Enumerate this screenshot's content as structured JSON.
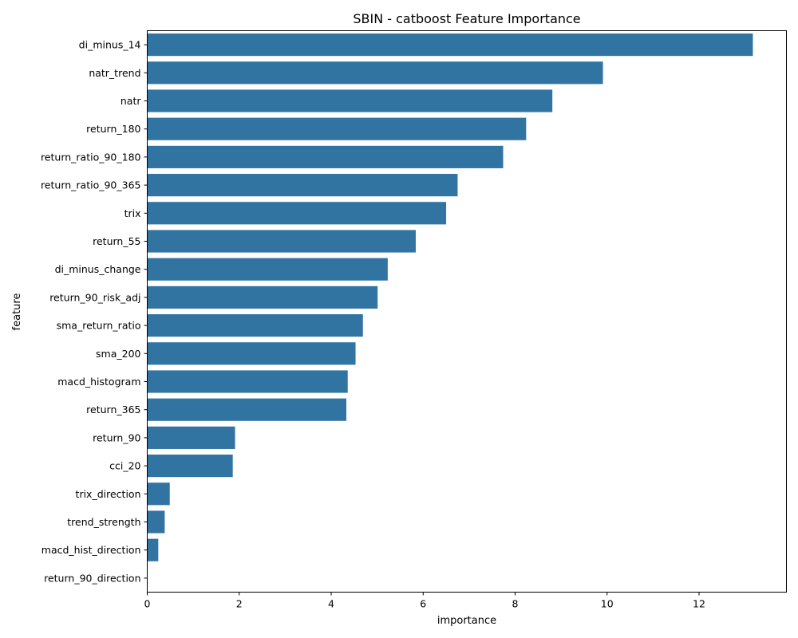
{
  "chart_data": {
    "type": "bar",
    "orientation": "horizontal",
    "title": "SBIN - catboost Feature Importance",
    "xlabel": "importance",
    "ylabel": "feature",
    "xlim": [
      0,
      13.9
    ],
    "xticks": [
      0,
      2,
      4,
      6,
      8,
      10,
      12
    ],
    "grid": false,
    "bar_color": "#3274a1",
    "categories": [
      "di_minus_14",
      "natr_trend",
      "natr",
      "return_180",
      "return_ratio_90_180",
      "return_ratio_90_365",
      "trix",
      "return_55",
      "di_minus_change",
      "return_90_risk_adj",
      "sma_return_ratio",
      "sma_200",
      "macd_histogram",
      "return_365",
      "return_90",
      "cci_20",
      "trix_direction",
      "trend_strength",
      "macd_hist_direction",
      "return_90_direction"
    ],
    "values": [
      13.17,
      9.91,
      8.81,
      8.24,
      7.74,
      6.75,
      6.5,
      5.84,
      5.23,
      5.01,
      4.69,
      4.53,
      4.36,
      4.33,
      1.91,
      1.86,
      0.49,
      0.38,
      0.24,
      0.0
    ]
  }
}
